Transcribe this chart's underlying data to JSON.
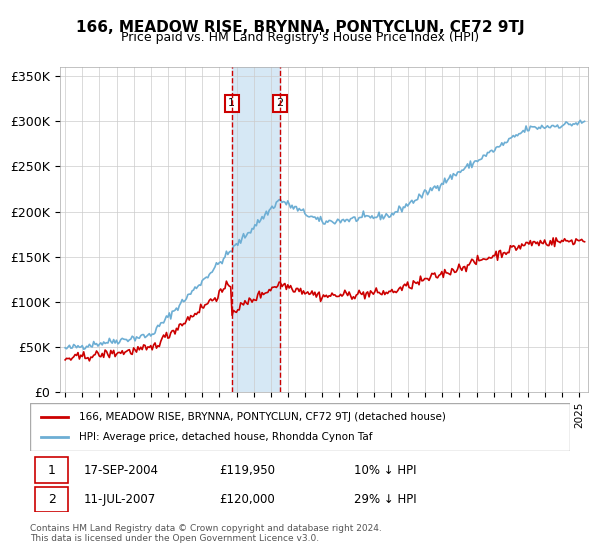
{
  "title": "166, MEADOW RISE, BRYNNA, PONTYCLUN, CF72 9TJ",
  "subtitle": "Price paid vs. HM Land Registry's House Price Index (HPI)",
  "ylabel_ticks": [
    "£0",
    "£50K",
    "£100K",
    "£150K",
    "£200K",
    "£250K",
    "£300K",
    "£350K"
  ],
  "ylim": [
    0,
    360000
  ],
  "xlim_start": 1995.0,
  "xlim_end": 2025.5,
  "hpi_color": "#6daed4",
  "price_color": "#cc0000",
  "shade_color": "#d6e8f5",
  "marker1_date": 2004.72,
  "marker2_date": 2007.53,
  "transaction1": {
    "label": "1",
    "date": "17-SEP-2004",
    "price": "£119,950",
    "hpi_rel": "10% ↓ HPI"
  },
  "transaction2": {
    "label": "2",
    "date": "11-JUL-2007",
    "price": "£120,000",
    "hpi_rel": "29% ↓ HPI"
  },
  "legend_line1": "166, MEADOW RISE, BRYNNA, PONTYCLUN, CF72 9TJ (detached house)",
  "legend_line2": "HPI: Average price, detached house, Rhondda Cynon Taf",
  "footer": "Contains HM Land Registry data © Crown copyright and database right 2024.\nThis data is licensed under the Open Government Licence v3.0."
}
